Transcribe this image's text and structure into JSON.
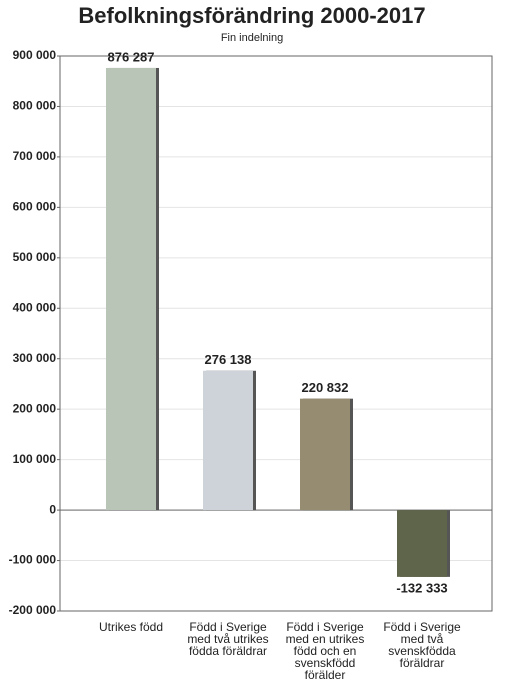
{
  "chart_data": {
    "type": "bar",
    "title": "Befolkningsförändring 2000-2017",
    "subtitle": "Fin indelning",
    "categories": [
      "Utrikes född",
      "Född i Sverige med två utrikes födda föräldrar",
      "Född i Sverige med en utrikes född och en svenskfödd förälder",
      "Född i Sverige med två svenskfödda föräldrar"
    ],
    "values": [
      876287,
      276138,
      220832,
      -132333
    ],
    "value_labels": [
      "876 287",
      "276 138",
      "220 832",
      "-132 333"
    ],
    "colors": [
      "#b9c5b6",
      "#cdd3d8",
      "#968c72",
      "#5f654a"
    ],
    "ylim": [
      -200000,
      900000
    ],
    "yticks": [
      {
        "value": -200000,
        "label": "-200 000"
      },
      {
        "value": -100000,
        "label": "-100 000"
      },
      0,
      {
        "value": 100000,
        "label": "100 000"
      },
      {
        "value": 200000,
        "label": "200 000"
      },
      {
        "value": 300000,
        "label": "300 000"
      },
      {
        "value": 400000,
        "label": "400 000"
      },
      {
        "value": 500000,
        "label": "500 000"
      },
      {
        "value": 600000,
        "label": "600 000"
      },
      {
        "value": 700000,
        "label": "700 000"
      },
      {
        "value": 800000,
        "label": "800 000"
      },
      {
        "value": 900000,
        "label": "900 000"
      }
    ],
    "grid": true
  }
}
